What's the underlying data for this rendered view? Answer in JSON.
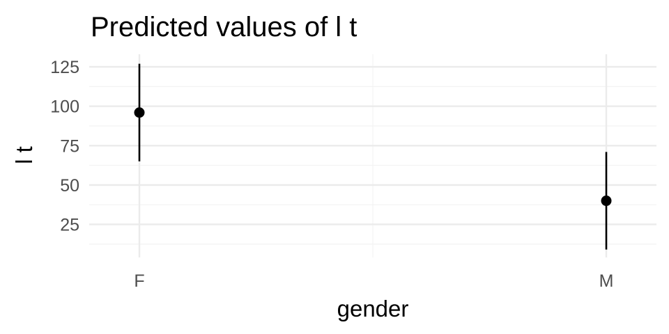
{
  "chart_data": {
    "type": "scatter",
    "title": "Predicted values of l t",
    "xlabel": "gender",
    "ylabel": "l t",
    "categories": [
      "F",
      "M"
    ],
    "series": [
      {
        "points": [
          {
            "x": "F",
            "y": 96,
            "ymin": 65,
            "ymax": 127
          },
          {
            "x": "M",
            "y": 40,
            "ymin": 9,
            "ymax": 71
          }
        ]
      }
    ],
    "ylim": [
      4,
      133
    ],
    "yticks": [
      25,
      50,
      75,
      100,
      125
    ],
    "grid": true,
    "legend": "none",
    "colors": {
      "point": "#000000",
      "errorbar": "#000000",
      "grid_major": "#ebebeb",
      "grid_minor": "#f3f3f3",
      "tick_text": "#4d4d4d"
    }
  }
}
